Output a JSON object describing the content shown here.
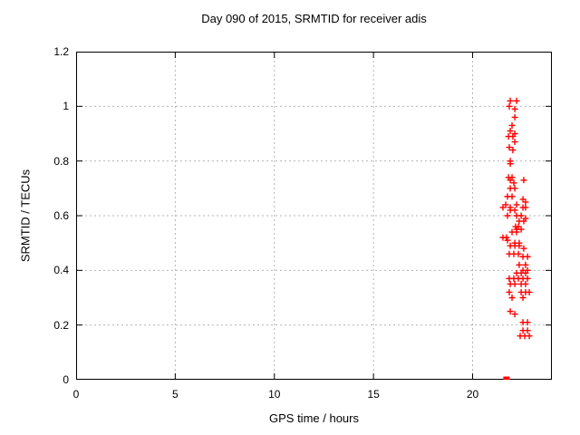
{
  "window": {
    "background_color": "#ffffff",
    "text_color": "#000000"
  },
  "chart_data": {
    "type": "scatter",
    "title": "Day 090 of 2015, SRMTID for receiver adis",
    "xlabel": "GPS time / hours",
    "ylabel": "SRMTID / TECUs",
    "xlim": [
      0,
      24
    ],
    "ylim": [
      0,
      1.2
    ],
    "grid": true,
    "grid_style": "dashed",
    "grid_color": "#b4b4b4",
    "border_color": "#000000",
    "legend_position": "none",
    "xticks": {
      "values": [
        0,
        5,
        10,
        15,
        20
      ],
      "labels": [
        "0",
        "5",
        "10",
        "15",
        "20"
      ]
    },
    "yticks": {
      "values": [
        0,
        0.2,
        0.4,
        0.6,
        0.8,
        1.0,
        1.2
      ],
      "labels": [
        "0",
        "0.2",
        "0.4",
        "0.6",
        "0.8",
        "1",
        "1.2"
      ]
    },
    "series": [
      {
        "name": "srmtid-points",
        "marker": "plus",
        "color": "#ff0000",
        "points": [
          [
            21.9,
            1.02
          ],
          [
            22.22,
            1.02
          ],
          [
            21.85,
            1.0
          ],
          [
            22.13,
            0.99
          ],
          [
            22.13,
            0.96
          ],
          [
            21.99,
            0.93
          ],
          [
            21.9,
            0.91
          ],
          [
            22.13,
            0.9
          ],
          [
            21.81,
            0.89
          ],
          [
            22.03,
            0.89
          ],
          [
            22.13,
            0.87
          ],
          [
            21.85,
            0.85
          ],
          [
            22.03,
            0.84
          ],
          [
            21.9,
            0.8
          ],
          [
            21.9,
            0.79
          ],
          [
            21.81,
            0.74
          ],
          [
            21.99,
            0.74
          ],
          [
            21.9,
            0.73
          ],
          [
            22.08,
            0.72
          ],
          [
            22.58,
            0.73
          ],
          [
            21.9,
            0.7
          ],
          [
            22.13,
            0.7
          ],
          [
            21.76,
            0.67
          ],
          [
            21.99,
            0.67
          ],
          [
            22.54,
            0.66
          ],
          [
            22.67,
            0.65
          ],
          [
            21.67,
            0.64
          ],
          [
            21.9,
            0.63
          ],
          [
            22.22,
            0.64
          ],
          [
            22.54,
            0.63
          ],
          [
            21.53,
            0.63
          ],
          [
            21.9,
            0.62
          ],
          [
            22.13,
            0.62
          ],
          [
            22.67,
            0.63
          ],
          [
            21.76,
            0.6
          ],
          [
            22.22,
            0.6
          ],
          [
            22.45,
            0.6
          ],
          [
            22.67,
            0.59
          ],
          [
            22.35,
            0.58
          ],
          [
            22.58,
            0.58
          ],
          [
            22.17,
            0.56
          ],
          [
            22.31,
            0.56
          ],
          [
            22.45,
            0.55
          ],
          [
            22.22,
            0.55
          ],
          [
            21.99,
            0.54
          ],
          [
            22.22,
            0.54
          ],
          [
            21.53,
            0.52
          ],
          [
            21.71,
            0.52
          ],
          [
            21.76,
            0.51
          ],
          [
            22.13,
            0.5
          ],
          [
            22.35,
            0.5
          ],
          [
            21.9,
            0.49
          ],
          [
            22.13,
            0.49
          ],
          [
            22.35,
            0.49
          ],
          [
            22.58,
            0.48
          ],
          [
            21.85,
            0.46
          ],
          [
            22.08,
            0.46
          ],
          [
            22.31,
            0.46
          ],
          [
            22.54,
            0.45
          ],
          [
            22.77,
            0.45
          ],
          [
            22.35,
            0.42
          ],
          [
            22.67,
            0.42
          ],
          [
            22.54,
            0.4
          ],
          [
            22.77,
            0.4
          ],
          [
            22.22,
            0.39
          ],
          [
            22.45,
            0.39
          ],
          [
            22.67,
            0.39
          ],
          [
            21.85,
            0.37
          ],
          [
            22.08,
            0.37
          ],
          [
            22.31,
            0.37
          ],
          [
            22.54,
            0.37
          ],
          [
            22.77,
            0.37
          ],
          [
            21.9,
            0.35
          ],
          [
            22.13,
            0.35
          ],
          [
            22.45,
            0.35
          ],
          [
            22.67,
            0.35
          ],
          [
            21.85,
            0.32
          ],
          [
            22.45,
            0.32
          ],
          [
            22.67,
            0.32
          ],
          [
            22.86,
            0.32
          ],
          [
            21.99,
            0.3
          ],
          [
            22.54,
            0.3
          ],
          [
            21.9,
            0.25
          ],
          [
            22.13,
            0.24
          ],
          [
            22.54,
            0.21
          ],
          [
            22.77,
            0.21
          ],
          [
            22.54,
            0.18
          ],
          [
            22.77,
            0.18
          ],
          [
            22.4,
            0.16
          ],
          [
            22.63,
            0.16
          ],
          [
            22.86,
            0.16
          ]
        ]
      },
      {
        "name": "zero-baseline-marker",
        "marker": "filled-square",
        "color": "#ff0000",
        "points": [
          [
            21.71,
            0.0
          ]
        ]
      }
    ]
  }
}
